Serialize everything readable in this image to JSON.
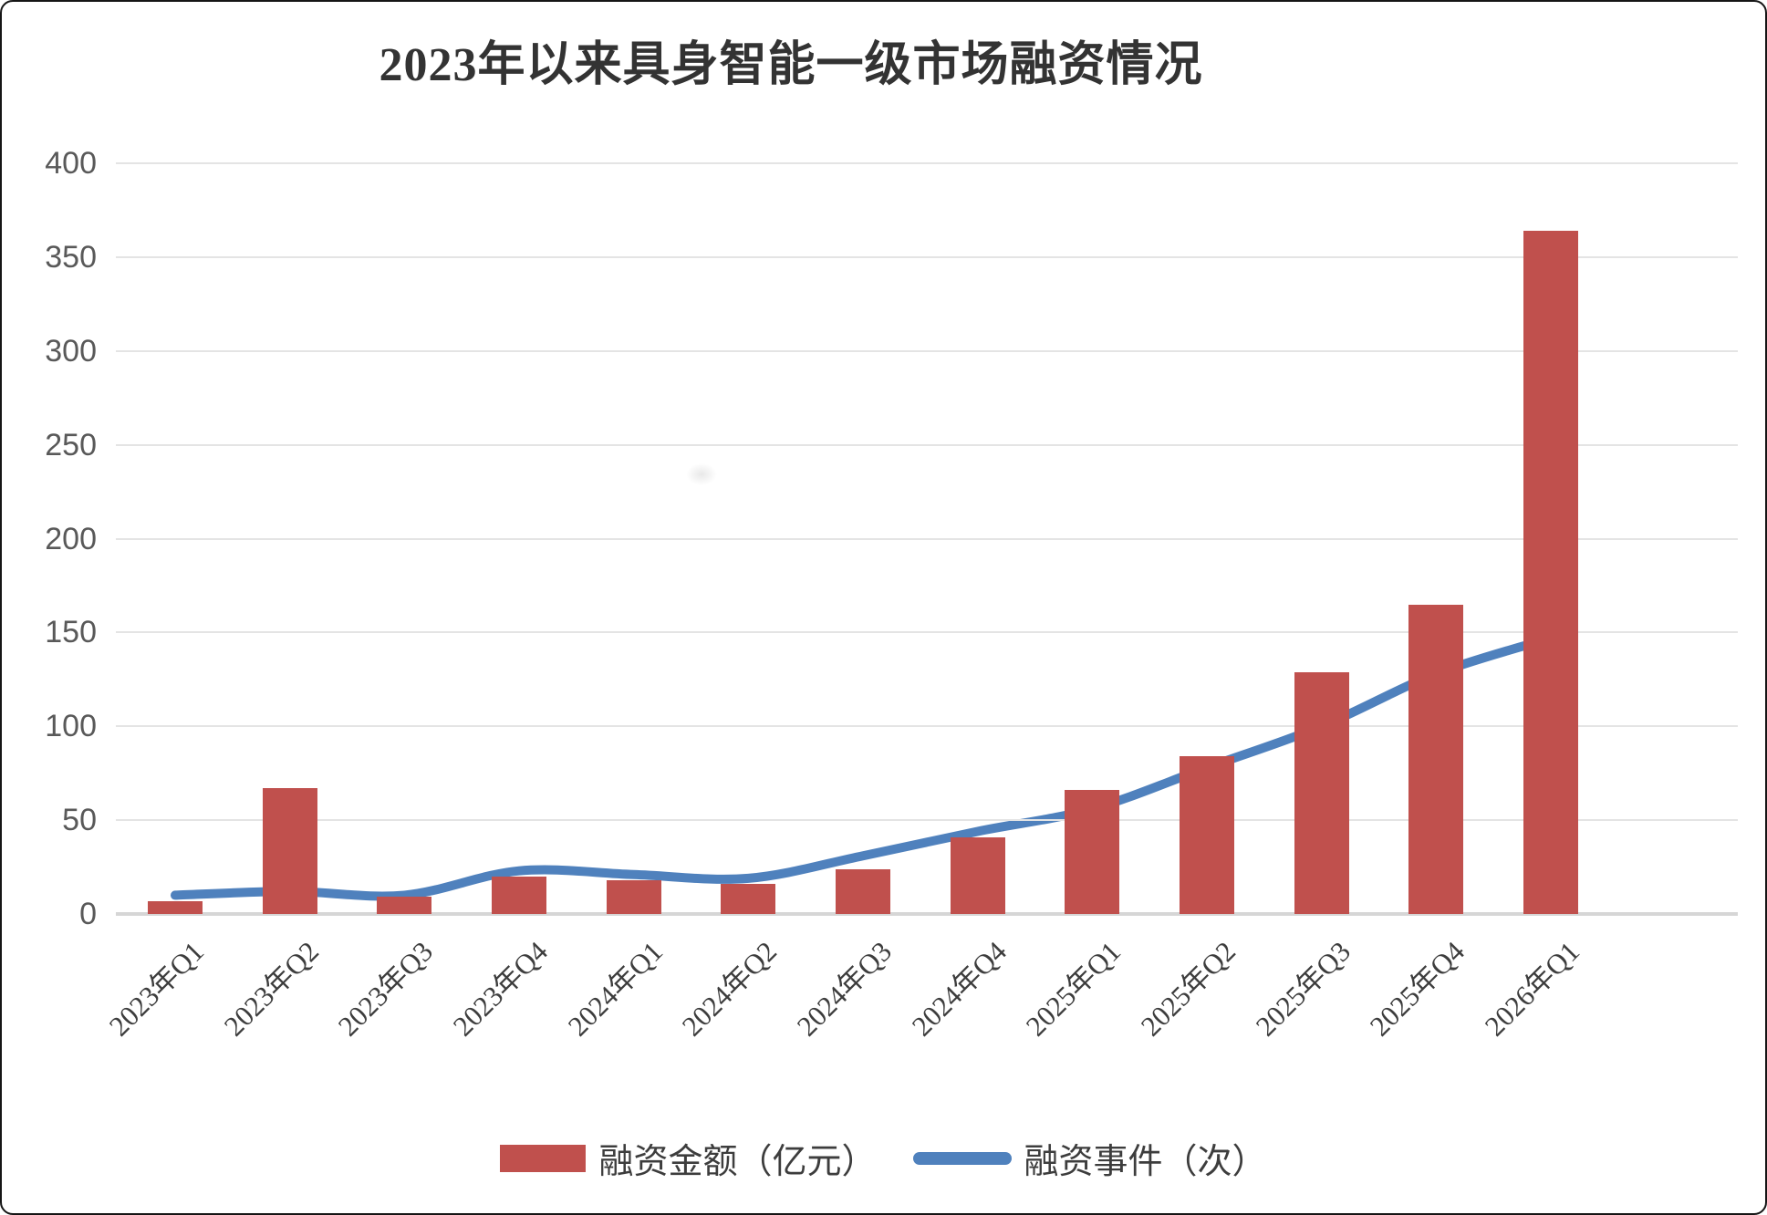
{
  "title": "2023年以来具身智能一级市场融资情况",
  "legend": {
    "bar_label": "融资金额（亿元）",
    "line_label": "融资事件（次）"
  },
  "colors": {
    "bar": "#C0504D",
    "line": "#4F81BD",
    "gridline": "#E4E4E4",
    "axis_line": "#D6D6D6",
    "y_label": "#595959",
    "x_label": "#3D3D3D",
    "title": "#333333"
  },
  "chart_data": {
    "type": "bar",
    "subtype": "combo-bar-line",
    "title": "2023年以来具身智能一级市场融资情况",
    "categories": [
      "2023年Q1",
      "2023年Q2",
      "2023年Q3",
      "2023年Q4",
      "2024年Q1",
      "2024年Q2",
      "2024年Q3",
      "2024年Q4",
      "2025年Q1",
      "2025年Q2",
      "2025年Q3",
      "2025年Q4",
      "2026年Q1"
    ],
    "series": [
      {
        "name": "融资金额（亿元）",
        "type": "bar",
        "color": "#C0504D",
        "values": [
          7,
          67,
          9,
          20,
          18,
          16,
          24,
          41,
          66,
          84,
          129,
          165,
          364
        ]
      },
      {
        "name": "融资事件（次）",
        "type": "line",
        "color": "#4F81BD",
        "smooth": true,
        "values": [
          10,
          12,
          10,
          23,
          21,
          19,
          31,
          44,
          56,
          78,
          100,
          128,
          147
        ]
      }
    ],
    "xlabel": "",
    "ylabel": "",
    "ylim": [
      0,
      400
    ],
    "y_ticks": [
      0,
      50,
      100,
      150,
      200,
      250,
      300,
      350,
      400
    ],
    "grid": true,
    "x_label_rotation_deg": -45,
    "legend_position": "bottom-center"
  }
}
